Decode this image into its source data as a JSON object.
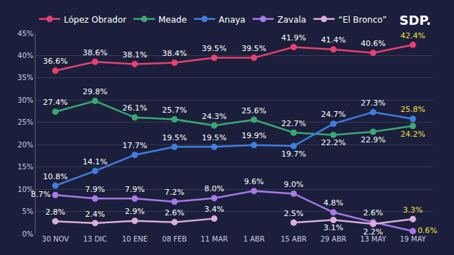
{
  "chart_data": {
    "type": "line",
    "categories": [
      "30 NOV",
      "13 DIC",
      "10 ENE",
      "08 FEB",
      "11 MAR",
      "1 ABR",
      "15 ABR",
      "29 ABR",
      "13 MAY",
      "19 MAY"
    ],
    "series": [
      {
        "name": "López Obrador",
        "color": "#e8416f",
        "values": [
          36.6,
          38.6,
          38.1,
          38.4,
          39.5,
          39.5,
          41.9,
          41.4,
          40.6,
          42.4
        ],
        "value_labels": [
          "36.6%",
          "38.6%",
          "38.1%",
          "38.4%",
          "39.5%",
          "39.5%",
          "41.9%",
          "41.4%",
          "40.6%",
          "42.4%"
        ]
      },
      {
        "name": "Meade",
        "color": "#3aa873",
        "values": [
          27.4,
          29.8,
          26.1,
          25.7,
          24.3,
          25.6,
          22.7,
          22.2,
          22.9,
          24.2
        ],
        "value_labels": [
          "27.4%",
          "29.8%",
          "26.1%",
          "25.7%",
          "24.3%",
          "25.6%",
          "22.7%",
          "22.2%",
          "22.9%",
          "24.2%"
        ]
      },
      {
        "name": "Anaya",
        "color": "#3f7fe0",
        "values": [
          10.8,
          14.1,
          17.7,
          19.5,
          19.5,
          19.9,
          19.7,
          24.7,
          27.3,
          25.8
        ],
        "value_labels": [
          "10.8%",
          "14.1%",
          "17.7%",
          "19.5%",
          "19.5%",
          "19.9%",
          "19.7%",
          "24.7%",
          "27.3%",
          "25.8%"
        ]
      },
      {
        "name": "Zavala",
        "color": "#a77ae8",
        "values": [
          8.7,
          7.9,
          7.9,
          7.2,
          8.0,
          9.6,
          9.0,
          4.8,
          2.6,
          0.6
        ],
        "value_labels": [
          "8.7%",
          "7.9%",
          "7.9%",
          "7.2%",
          "8.0%",
          "9.6%",
          "9.0%",
          "4.8%",
          "2.6%",
          "0.6%"
        ]
      },
      {
        "name": "“El Bronco”",
        "color": "#dcaed8",
        "values": [
          2.8,
          2.4,
          2.9,
          2.6,
          3.4,
          null,
          2.5,
          3.1,
          2.2,
          3.3
        ],
        "value_labels": [
          "2.8%",
          "2.4%",
          "2.9%",
          "2.6%",
          "3.4%",
          null,
          "2.5%",
          "3.1%",
          "2.2%",
          "3.3%"
        ]
      }
    ],
    "ylim": [
      0,
      45
    ],
    "yticks": [
      {
        "value": 0,
        "label": "0%"
      },
      {
        "value": 5,
        "label": "5%"
      },
      {
        "value": 10,
        "label": "10%"
      },
      {
        "value": 15,
        "label": "15%"
      },
      {
        "value": 20,
        "label": "20%"
      },
      {
        "value": 25,
        "label": "25%"
      },
      {
        "value": 30,
        "label": "30%"
      },
      {
        "value": 35,
        "label": "35%"
      },
      {
        "value": 40,
        "label": "40%"
      },
      {
        "value": 45,
        "label": "45%"
      }
    ],
    "grid": true,
    "legend": "top",
    "data_labels": true,
    "marker": "circle",
    "line_style": "solid",
    "annotations": [
      "SDP."
    ]
  }
}
